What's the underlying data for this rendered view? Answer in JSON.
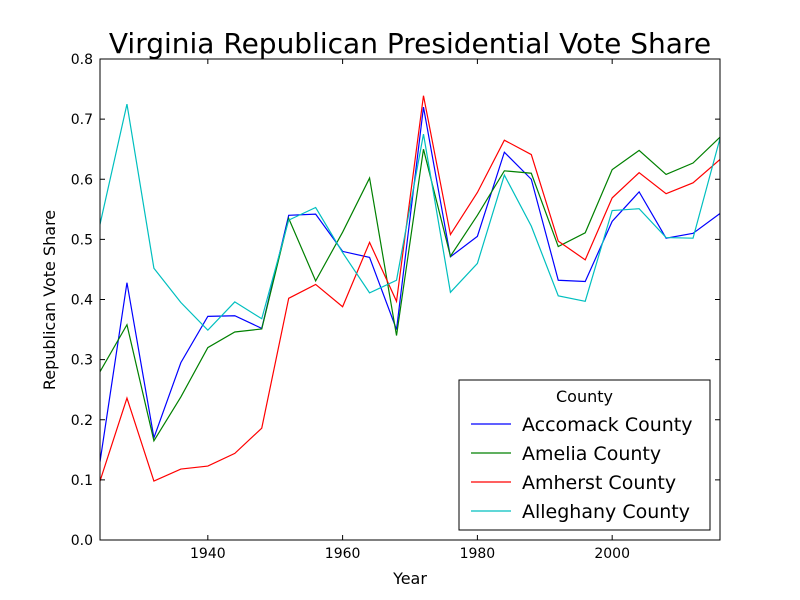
{
  "chart_data": {
    "type": "line",
    "title": "Virginia Republican Presidential Vote Share",
    "xlabel": "Year",
    "ylabel": "Republican Vote Share",
    "xlim": [
      1924,
      2016
    ],
    "ylim": [
      0.0,
      0.8
    ],
    "x_ticks": [
      1940,
      1960,
      1980,
      2000
    ],
    "x_tick_labels": [
      "1940",
      "1960",
      "1980",
      "2000"
    ],
    "y_ticks": [
      0.0,
      0.1,
      0.2,
      0.3,
      0.4,
      0.5,
      0.6,
      0.7,
      0.8
    ],
    "y_tick_labels": [
      "0.0",
      "0.1",
      "0.2",
      "0.3",
      "0.4",
      "0.5",
      "0.6",
      "0.7",
      "0.8"
    ],
    "grid": false,
    "legend": {
      "title": "County",
      "placement": "lower-right"
    },
    "x": [
      1924,
      1928,
      1932,
      1936,
      1940,
      1944,
      1948,
      1952,
      1956,
      1960,
      1964,
      1968,
      1972,
      1976,
      1980,
      1984,
      1988,
      1992,
      1996,
      2000,
      2004,
      2008,
      2012,
      2016
    ],
    "series": [
      {
        "name": "Accomack County",
        "color": "#0000ff",
        "values": [
          0.13,
          0.428,
          0.17,
          0.295,
          0.372,
          0.373,
          0.352,
          0.54,
          0.542,
          0.48,
          0.47,
          0.35,
          0.72,
          0.471,
          0.505,
          0.645,
          0.6,
          0.432,
          0.43,
          0.53,
          0.579,
          0.502,
          0.51,
          0.543
        ]
      },
      {
        "name": "Amelia County",
        "color": "#008000",
        "values": [
          0.28,
          0.358,
          0.165,
          0.238,
          0.32,
          0.346,
          0.351,
          0.535,
          0.431,
          0.512,
          0.602,
          0.34,
          0.65,
          0.472,
          0.54,
          0.614,
          0.61,
          0.488,
          0.511,
          0.616,
          0.648,
          0.608,
          0.627,
          0.67
        ]
      },
      {
        "name": "Amherst County",
        "color": "#ff0000",
        "values": [
          0.098,
          0.236,
          0.098,
          0.118,
          0.123,
          0.144,
          0.186,
          0.402,
          0.425,
          0.388,
          0.495,
          0.397,
          0.739,
          0.508,
          0.578,
          0.665,
          0.641,
          0.497,
          0.466,
          0.569,
          0.611,
          0.576,
          0.594,
          0.633
        ]
      },
      {
        "name": "Alleghany County",
        "color": "#00bfbf",
        "values": [
          0.525,
          0.725,
          0.452,
          0.395,
          0.349,
          0.396,
          0.368,
          0.532,
          0.553,
          0.478,
          0.411,
          0.432,
          0.675,
          0.412,
          0.46,
          0.607,
          0.522,
          0.406,
          0.397,
          0.548,
          0.551,
          0.503,
          0.502,
          0.668
        ]
      }
    ]
  }
}
